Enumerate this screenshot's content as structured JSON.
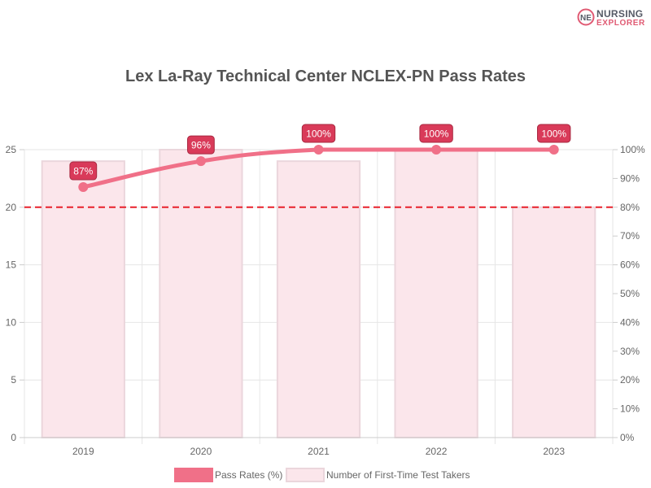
{
  "brand": {
    "name_line1": "NURSING",
    "name_line2": "EXPLORER",
    "badge_text": "NE"
  },
  "chart_data": {
    "type": "bar",
    "title": "Lex La-Ray Technical Center NCLEX-PN Pass Rates",
    "categories": [
      "2019",
      "2020",
      "2021",
      "2022",
      "2023"
    ],
    "series": [
      {
        "name": "Pass Rates (%)",
        "kind": "line",
        "axis": "right",
        "values": [
          87,
          96,
          100,
          100,
          100
        ],
        "labels": [
          "87%",
          "96%",
          "100%",
          "100%",
          "100%"
        ]
      },
      {
        "name": "Number of First-Time Test Takers",
        "kind": "bar",
        "axis": "left",
        "values": [
          24,
          25,
          24,
          25,
          20
        ]
      }
    ],
    "y_left": {
      "min": 0,
      "max": 25,
      "ticks": [
        "0",
        "5",
        "10",
        "15",
        "20",
        "25"
      ]
    },
    "y_right": {
      "min": 0,
      "max": 100,
      "ticks": [
        "0%",
        "10%",
        "20%",
        "30%",
        "40%",
        "50%",
        "60%",
        "70%",
        "80%",
        "90%",
        "100%"
      ]
    },
    "reference_line": {
      "axis": "right",
      "value": 80
    },
    "grid": true,
    "legend_position": "bottom",
    "colors": {
      "line": "#f07088",
      "line_point": "#f07088",
      "bar_fill": "#fbe6eb",
      "bar_border": "#ebd6dc",
      "label_bg": "#d93a59",
      "reference": "#e8212b",
      "grid": "#e6e6e6",
      "text": "#666666",
      "title": "#555555"
    }
  }
}
